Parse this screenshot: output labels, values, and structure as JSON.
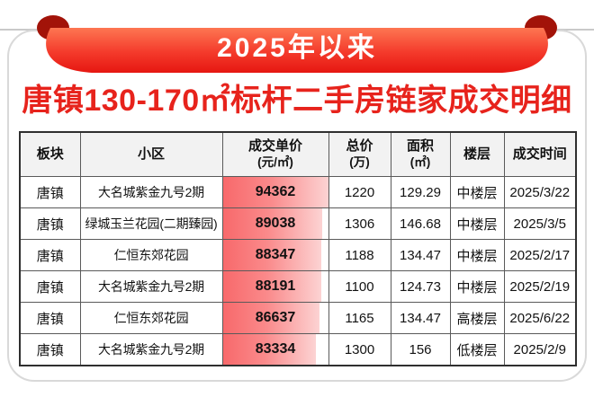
{
  "banner": {
    "text": "2025年以来"
  },
  "title": {
    "text": "唐镇130-170㎡标杆二手房链家成交明细"
  },
  "colors": {
    "accent_red": "#e7231c",
    "ribbon_gradient_top": "#fd7652",
    "ribbon_gradient_bottom": "#e61711",
    "ribbon_curl": "#a21309",
    "header_bg": "#f2f2f2",
    "table_border": "#2f2f2f",
    "bar_gradient_left": "#f8696b",
    "bar_gradient_right": "#fcd3d3"
  },
  "chart_data": {
    "type": "table",
    "title": "唐镇130-170㎡标杆二手房链家成交明细",
    "banner": "2025年以来",
    "columns": [
      {
        "label": "板块"
      },
      {
        "label": "小区"
      },
      {
        "label": "成交单价",
        "unit": "(元/㎡)"
      },
      {
        "label": "总价",
        "unit": "(万)"
      },
      {
        "label": "面积",
        "unit": "(㎡)"
      },
      {
        "label": "楼层"
      },
      {
        "label": "成交时间"
      }
    ],
    "unit_price_bar": {
      "style": "gradient-data-bar",
      "scaled_to_max_value": 94362
    },
    "rows": [
      {
        "block": "唐镇",
        "community": "大名城紫金九号2期",
        "unit_price": 94362,
        "total_price": 1220,
        "area": 129.29,
        "floor": "中楼层",
        "date": "2025/3/22"
      },
      {
        "block": "唐镇",
        "community": "绿城玉兰花园(二期臻园)",
        "unit_price": 89038,
        "total_price": 1306,
        "area": 146.68,
        "floor": "中楼层",
        "date": "2025/3/5"
      },
      {
        "block": "唐镇",
        "community": "仁恒东郊花园",
        "unit_price": 88347,
        "total_price": 1188,
        "area": 134.47,
        "floor": "中楼层",
        "date": "2025/2/17"
      },
      {
        "block": "唐镇",
        "community": "大名城紫金九号2期",
        "unit_price": 88191,
        "total_price": 1100,
        "area": 124.73,
        "floor": "中楼层",
        "date": "2025/2/19"
      },
      {
        "block": "唐镇",
        "community": "仁恒东郊花园",
        "unit_price": 86637,
        "total_price": 1165,
        "area": 134.47,
        "floor": "高楼层",
        "date": "2025/6/22"
      },
      {
        "block": "唐镇",
        "community": "大名城紫金九号2期",
        "unit_price": 83334,
        "total_price": 1300,
        "area": 156,
        "floor": "低楼层",
        "date": "2025/2/9"
      }
    ]
  }
}
